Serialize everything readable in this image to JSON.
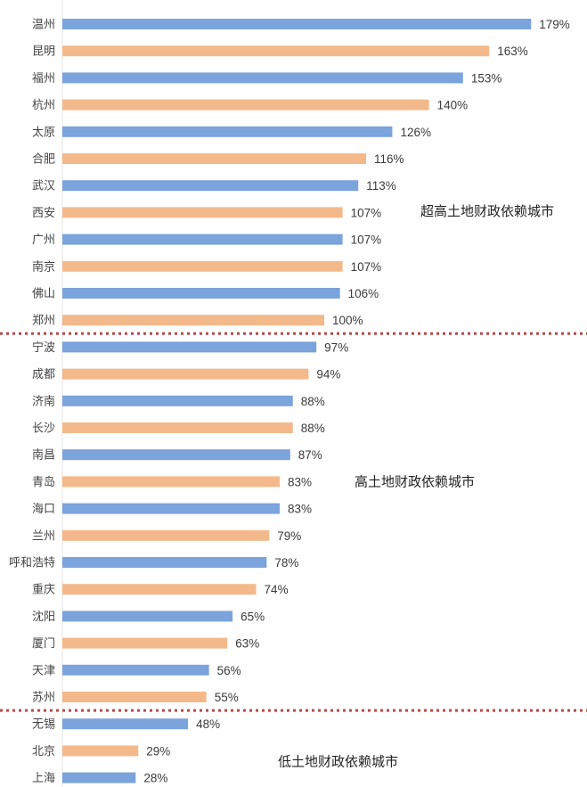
{
  "chart_data": {
    "type": "bar",
    "orientation": "horizontal",
    "categories": [
      "温州",
      "昆明",
      "福州",
      "杭州",
      "太原",
      "合肥",
      "武汉",
      "西安",
      "广州",
      "南京",
      "佛山",
      "郑州",
      "宁波",
      "成都",
      "济南",
      "长沙",
      "南昌",
      "青岛",
      "海口",
      "兰州",
      "呼和浩特",
      "重庆",
      "沈阳",
      "厦门",
      "天津",
      "苏州",
      "无锡",
      "北京",
      "上海"
    ],
    "values": [
      179,
      163,
      153,
      140,
      126,
      116,
      113,
      107,
      107,
      107,
      106,
      100,
      97,
      94,
      88,
      88,
      87,
      83,
      83,
      79,
      78,
      74,
      65,
      63,
      56,
      55,
      48,
      29,
      28
    ],
    "value_labels": [
      "179%",
      "163%",
      "153%",
      "140%",
      "126%",
      "116%",
      "113%",
      "107%",
      "107%",
      "107%",
      "106%",
      "100%",
      "97%",
      "94%",
      "88%",
      "88%",
      "87%",
      "83%",
      "83%",
      "79%",
      "78%",
      "74%",
      "65%",
      "63%",
      "56%",
      "55%",
      "48%",
      "29%",
      "28%"
    ],
    "value_unit": "%",
    "xlim": [
      0,
      179
    ],
    "grid": false,
    "colors": {
      "blue": "#7ba3dc",
      "orange": "#f4b98a",
      "divider": "#b54a4a"
    },
    "bar_color_pattern": "alternating blue / orange, starting with blue",
    "groups": [
      {
        "label": "超高土地财政依赖城市",
        "start": 0,
        "end": 11
      },
      {
        "label": "高土地财政依赖城市",
        "start": 12,
        "end": 25
      },
      {
        "label": "低土地财政依赖城市",
        "start": 26,
        "end": 28
      }
    ]
  }
}
